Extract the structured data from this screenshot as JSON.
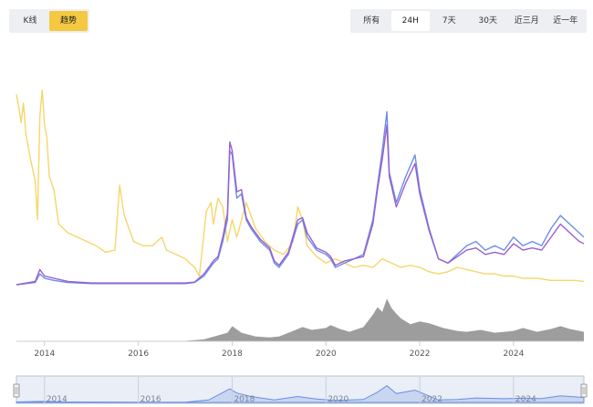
{
  "view_tabs": [
    {
      "label": "K线",
      "active": false
    },
    {
      "label": "趋势",
      "active": true
    }
  ],
  "range_tabs": [
    {
      "label": "所有",
      "active": false
    },
    {
      "label": "24H",
      "active": true
    },
    {
      "label": "7天",
      "active": false
    },
    {
      "label": "30天",
      "active": false
    },
    {
      "label": "近三月",
      "active": false
    },
    {
      "label": "近一年",
      "active": false
    }
  ],
  "colors": {
    "active_tab": "#f5c842",
    "series_yellow": "#f5d66b",
    "series_blue": "#6b8ee6",
    "series_purple": "#9a5fd0",
    "volume": "#8c8c8c",
    "navigator": "#c8d6f0"
  },
  "chart_data": {
    "type": "line",
    "x_ticks": [
      "2014",
      "2016",
      "2018",
      "2020",
      "2022",
      "2024"
    ],
    "navigator_ticks": [
      "2014",
      "2016",
      "2018",
      "2020",
      "2022",
      "2024"
    ],
    "x_range": [
      2013.4,
      2025.5
    ],
    "y_range": [
      0,
      1
    ],
    "volume_range": [
      0,
      1
    ],
    "series": [
      {
        "key": "yellow",
        "points": [
          [
            2013.4,
            0.88
          ],
          [
            2013.45,
            0.82
          ],
          [
            2013.5,
            0.75
          ],
          [
            2013.55,
            0.84
          ],
          [
            2013.6,
            0.7
          ],
          [
            2013.7,
            0.58
          ],
          [
            2013.8,
            0.48
          ],
          [
            2013.85,
            0.3
          ],
          [
            2013.9,
            0.78
          ],
          [
            2013.95,
            0.9
          ],
          [
            2014.0,
            0.74
          ],
          [
            2014.05,
            0.68
          ],
          [
            2014.1,
            0.5
          ],
          [
            2014.2,
            0.44
          ],
          [
            2014.3,
            0.28
          ],
          [
            2014.5,
            0.24
          ],
          [
            2014.7,
            0.22
          ],
          [
            2014.9,
            0.2
          ],
          [
            2015.1,
            0.18
          ],
          [
            2015.3,
            0.15
          ],
          [
            2015.5,
            0.16
          ],
          [
            2015.6,
            0.46
          ],
          [
            2015.7,
            0.32
          ],
          [
            2015.8,
            0.26
          ],
          [
            2015.9,
            0.2
          ],
          [
            2016.1,
            0.18
          ],
          [
            2016.3,
            0.18
          ],
          [
            2016.5,
            0.22
          ],
          [
            2016.6,
            0.16
          ],
          [
            2016.8,
            0.14
          ],
          [
            2017.0,
            0.12
          ],
          [
            2017.2,
            0.08
          ],
          [
            2017.3,
            0.04
          ],
          [
            2017.45,
            0.34
          ],
          [
            2017.55,
            0.38
          ],
          [
            2017.6,
            0.28
          ],
          [
            2017.7,
            0.4
          ],
          [
            2017.8,
            0.36
          ],
          [
            2017.9,
            0.2
          ],
          [
            2018.0,
            0.3
          ],
          [
            2018.1,
            0.22
          ],
          [
            2018.3,
            0.38
          ],
          [
            2018.5,
            0.26
          ],
          [
            2018.7,
            0.2
          ],
          [
            2018.9,
            0.16
          ],
          [
            2019.1,
            0.14
          ],
          [
            2019.3,
            0.2
          ],
          [
            2019.4,
            0.36
          ],
          [
            2019.5,
            0.3
          ],
          [
            2019.6,
            0.18
          ],
          [
            2019.8,
            0.13
          ],
          [
            2020.0,
            0.1
          ],
          [
            2020.2,
            0.12
          ],
          [
            2020.4,
            0.1
          ],
          [
            2020.6,
            0.08
          ],
          [
            2020.8,
            0.09
          ],
          [
            2021.0,
            0.08
          ],
          [
            2021.2,
            0.12
          ],
          [
            2021.4,
            0.1
          ],
          [
            2021.6,
            0.08
          ],
          [
            2021.8,
            0.09
          ],
          [
            2022.0,
            0.08
          ],
          [
            2022.2,
            0.06
          ],
          [
            2022.4,
            0.05
          ],
          [
            2022.6,
            0.06
          ],
          [
            2022.8,
            0.08
          ],
          [
            2023.0,
            0.07
          ],
          [
            2023.2,
            0.06
          ],
          [
            2023.4,
            0.05
          ],
          [
            2023.6,
            0.05
          ],
          [
            2023.8,
            0.04
          ],
          [
            2024.0,
            0.04
          ],
          [
            2024.2,
            0.03
          ],
          [
            2024.5,
            0.03
          ],
          [
            2024.8,
            0.02
          ],
          [
            2025.0,
            0.02
          ],
          [
            2025.3,
            0.02
          ],
          [
            2025.5,
            0.015
          ]
        ]
      },
      {
        "key": "blue",
        "points": [
          [
            2013.4,
            0.0
          ],
          [
            2013.8,
            0.01
          ],
          [
            2013.9,
            0.05
          ],
          [
            2014.0,
            0.03
          ],
          [
            2014.2,
            0.02
          ],
          [
            2014.5,
            0.01
          ],
          [
            2015.0,
            0.005
          ],
          [
            2016.0,
            0.005
          ],
          [
            2017.0,
            0.005
          ],
          [
            2017.2,
            0.01
          ],
          [
            2017.4,
            0.04
          ],
          [
            2017.6,
            0.1
          ],
          [
            2017.7,
            0.12
          ],
          [
            2017.8,
            0.2
          ],
          [
            2017.9,
            0.3
          ],
          [
            2017.95,
            0.62
          ],
          [
            2018.0,
            0.6
          ],
          [
            2018.1,
            0.4
          ],
          [
            2018.2,
            0.42
          ],
          [
            2018.3,
            0.3
          ],
          [
            2018.4,
            0.26
          ],
          [
            2018.6,
            0.2
          ],
          [
            2018.8,
            0.16
          ],
          [
            2018.9,
            0.1
          ],
          [
            2019.0,
            0.08
          ],
          [
            2019.2,
            0.14
          ],
          [
            2019.4,
            0.28
          ],
          [
            2019.5,
            0.3
          ],
          [
            2019.6,
            0.22
          ],
          [
            2019.8,
            0.16
          ],
          [
            2020.0,
            0.14
          ],
          [
            2020.1,
            0.12
          ],
          [
            2020.2,
            0.08
          ],
          [
            2020.4,
            0.1
          ],
          [
            2020.6,
            0.12
          ],
          [
            2020.8,
            0.14
          ],
          [
            2021.0,
            0.3
          ],
          [
            2021.1,
            0.46
          ],
          [
            2021.2,
            0.62
          ],
          [
            2021.3,
            0.8
          ],
          [
            2021.35,
            0.52
          ],
          [
            2021.5,
            0.38
          ],
          [
            2021.7,
            0.5
          ],
          [
            2021.9,
            0.6
          ],
          [
            2022.0,
            0.44
          ],
          [
            2022.2,
            0.26
          ],
          [
            2022.4,
            0.12
          ],
          [
            2022.6,
            0.1
          ],
          [
            2022.8,
            0.14
          ],
          [
            2023.0,
            0.18
          ],
          [
            2023.2,
            0.2
          ],
          [
            2023.4,
            0.16
          ],
          [
            2023.6,
            0.18
          ],
          [
            2023.8,
            0.16
          ],
          [
            2024.0,
            0.22
          ],
          [
            2024.2,
            0.18
          ],
          [
            2024.4,
            0.2
          ],
          [
            2024.6,
            0.18
          ],
          [
            2024.8,
            0.26
          ],
          [
            2025.0,
            0.32
          ],
          [
            2025.2,
            0.28
          ],
          [
            2025.4,
            0.24
          ],
          [
            2025.5,
            0.22
          ]
        ]
      },
      {
        "key": "purple",
        "points": [
          [
            2013.4,
            0.0
          ],
          [
            2013.8,
            0.015
          ],
          [
            2013.9,
            0.07
          ],
          [
            2014.0,
            0.04
          ],
          [
            2014.2,
            0.03
          ],
          [
            2014.5,
            0.015
          ],
          [
            2015.0,
            0.008
          ],
          [
            2016.0,
            0.008
          ],
          [
            2017.0,
            0.008
          ],
          [
            2017.2,
            0.012
          ],
          [
            2017.4,
            0.05
          ],
          [
            2017.6,
            0.11
          ],
          [
            2017.7,
            0.13
          ],
          [
            2017.8,
            0.22
          ],
          [
            2017.9,
            0.33
          ],
          [
            2017.95,
            0.66
          ],
          [
            2018.0,
            0.62
          ],
          [
            2018.1,
            0.43
          ],
          [
            2018.2,
            0.44
          ],
          [
            2018.3,
            0.31
          ],
          [
            2018.4,
            0.27
          ],
          [
            2018.6,
            0.21
          ],
          [
            2018.8,
            0.17
          ],
          [
            2018.9,
            0.11
          ],
          [
            2019.0,
            0.09
          ],
          [
            2019.2,
            0.15
          ],
          [
            2019.4,
            0.3
          ],
          [
            2019.5,
            0.31
          ],
          [
            2019.6,
            0.24
          ],
          [
            2019.8,
            0.17
          ],
          [
            2020.0,
            0.15
          ],
          [
            2020.1,
            0.13
          ],
          [
            2020.2,
            0.09
          ],
          [
            2020.4,
            0.11
          ],
          [
            2020.6,
            0.12
          ],
          [
            2020.8,
            0.13
          ],
          [
            2021.0,
            0.28
          ],
          [
            2021.1,
            0.44
          ],
          [
            2021.2,
            0.58
          ],
          [
            2021.3,
            0.74
          ],
          [
            2021.35,
            0.5
          ],
          [
            2021.5,
            0.36
          ],
          [
            2021.7,
            0.47
          ],
          [
            2021.9,
            0.56
          ],
          [
            2022.0,
            0.42
          ],
          [
            2022.2,
            0.25
          ],
          [
            2022.4,
            0.12
          ],
          [
            2022.6,
            0.1
          ],
          [
            2022.8,
            0.13
          ],
          [
            2023.0,
            0.16
          ],
          [
            2023.2,
            0.17
          ],
          [
            2023.4,
            0.14
          ],
          [
            2023.6,
            0.15
          ],
          [
            2023.8,
            0.14
          ],
          [
            2024.0,
            0.19
          ],
          [
            2024.2,
            0.16
          ],
          [
            2024.4,
            0.17
          ],
          [
            2024.6,
            0.16
          ],
          [
            2024.8,
            0.22
          ],
          [
            2025.0,
            0.28
          ],
          [
            2025.2,
            0.24
          ],
          [
            2025.4,
            0.2
          ],
          [
            2025.5,
            0.19
          ]
        ]
      }
    ],
    "volume": [
      [
        2013.4,
        0.01
      ],
      [
        2017.0,
        0.01
      ],
      [
        2017.4,
        0.04
      ],
      [
        2017.9,
        0.18
      ],
      [
        2018.0,
        0.32
      ],
      [
        2018.2,
        0.18
      ],
      [
        2018.5,
        0.1
      ],
      [
        2018.8,
        0.08
      ],
      [
        2019.0,
        0.1
      ],
      [
        2019.3,
        0.22
      ],
      [
        2019.5,
        0.3
      ],
      [
        2019.7,
        0.24
      ],
      [
        2020.0,
        0.28
      ],
      [
        2020.1,
        0.34
      ],
      [
        2020.3,
        0.26
      ],
      [
        2020.5,
        0.2
      ],
      [
        2020.8,
        0.3
      ],
      [
        2021.0,
        0.56
      ],
      [
        2021.1,
        0.72
      ],
      [
        2021.2,
        0.62
      ],
      [
        2021.3,
        0.9
      ],
      [
        2021.4,
        0.7
      ],
      [
        2021.5,
        0.58
      ],
      [
        2021.6,
        0.48
      ],
      [
        2021.8,
        0.36
      ],
      [
        2022.0,
        0.42
      ],
      [
        2022.2,
        0.38
      ],
      [
        2022.5,
        0.28
      ],
      [
        2022.8,
        0.22
      ],
      [
        2023.0,
        0.2
      ],
      [
        2023.3,
        0.24
      ],
      [
        2023.6,
        0.18
      ],
      [
        2024.0,
        0.22
      ],
      [
        2024.2,
        0.28
      ],
      [
        2024.5,
        0.2
      ],
      [
        2024.8,
        0.26
      ],
      [
        2025.0,
        0.32
      ],
      [
        2025.2,
        0.26
      ],
      [
        2025.5,
        0.2
      ]
    ],
    "navigator": [
      [
        2013.4,
        0.02
      ],
      [
        2013.9,
        0.04
      ],
      [
        2014.5,
        0.02
      ],
      [
        2016.0,
        0.01
      ],
      [
        2017.0,
        0.01
      ],
      [
        2017.5,
        0.1
      ],
      [
        2017.95,
        0.55
      ],
      [
        2018.1,
        0.38
      ],
      [
        2018.4,
        0.24
      ],
      [
        2018.9,
        0.1
      ],
      [
        2019.4,
        0.24
      ],
      [
        2019.8,
        0.14
      ],
      [
        2020.2,
        0.08
      ],
      [
        2020.8,
        0.12
      ],
      [
        2021.1,
        0.42
      ],
      [
        2021.3,
        0.68
      ],
      [
        2021.5,
        0.36
      ],
      [
        2021.9,
        0.5
      ],
      [
        2022.4,
        0.1
      ],
      [
        2022.8,
        0.12
      ],
      [
        2023.2,
        0.18
      ],
      [
        2023.8,
        0.15
      ],
      [
        2024.2,
        0.17
      ],
      [
        2024.6,
        0.16
      ],
      [
        2025.0,
        0.27
      ],
      [
        2025.5,
        0.2
      ]
    ]
  }
}
